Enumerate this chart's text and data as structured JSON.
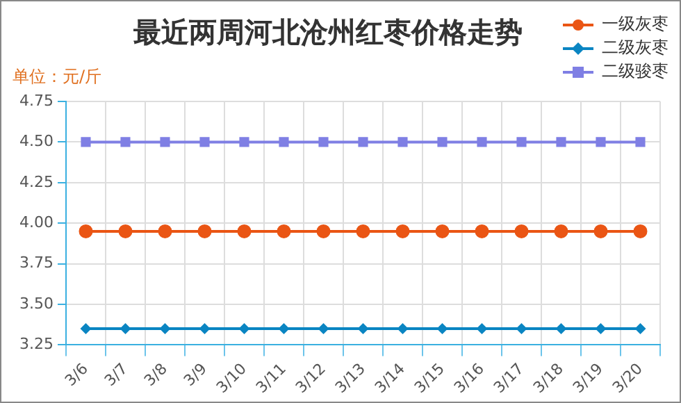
{
  "chart_data": {
    "type": "line",
    "title": "最近两周河北沧州红枣价格走势",
    "ylabel": "单位：元/斤",
    "categories": [
      "3/6",
      "3/7",
      "3/8",
      "3/9",
      "3/10",
      "3/11",
      "3/12",
      "3/13",
      "3/14",
      "3/15",
      "3/16",
      "3/17",
      "3/18",
      "3/19",
      "3/20"
    ],
    "series": [
      {
        "name": "一级灰枣",
        "color": "#ea5514",
        "marker": "circle",
        "values": [
          3.95,
          3.95,
          3.95,
          3.95,
          3.95,
          3.95,
          3.95,
          3.95,
          3.95,
          3.95,
          3.95,
          3.95,
          3.95,
          3.95,
          3.95
        ]
      },
      {
        "name": "二级灰枣",
        "color": "#0a85c2",
        "marker": "diamond",
        "values": [
          3.35,
          3.35,
          3.35,
          3.35,
          3.35,
          3.35,
          3.35,
          3.35,
          3.35,
          3.35,
          3.35,
          3.35,
          3.35,
          3.35,
          3.35
        ]
      },
      {
        "name": "二级骏枣",
        "color": "#7f7fe4",
        "marker": "square",
        "values": [
          4.5,
          4.5,
          4.5,
          4.5,
          4.5,
          4.5,
          4.5,
          4.5,
          4.5,
          4.5,
          4.5,
          4.5,
          4.5,
          4.5,
          4.5
        ]
      }
    ],
    "ylim": [
      3.25,
      4.75
    ],
    "yticks": [
      {
        "value": 3.25,
        "label": "3.25"
      },
      {
        "value": 3.5,
        "label": "3.50"
      },
      {
        "value": 3.75,
        "label": "3.75"
      },
      {
        "value": 4,
        "label": "4.00"
      },
      {
        "value": 4.25,
        "label": "4.25"
      },
      {
        "value": 4.5,
        "label": "4.50"
      },
      {
        "value": 4.75,
        "label": "4.75"
      }
    ],
    "grid": true,
    "legend": "top right",
    "line_style": "solid"
  }
}
